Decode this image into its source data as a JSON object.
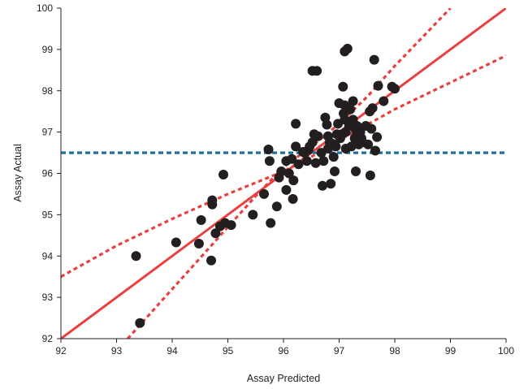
{
  "chart_data": {
    "type": "scatter",
    "title": "",
    "xlabel": "Assay Predicted",
    "ylabel": "Assay Actual",
    "xlim": [
      92,
      100
    ],
    "ylim": [
      92,
      100
    ],
    "xticks": [
      "92",
      "93",
      "94",
      "95",
      "96",
      "97",
      "98",
      "99",
      "100"
    ],
    "yticks": [
      "92",
      "93",
      "94",
      "95",
      "96",
      "97",
      "98",
      "99",
      "100"
    ],
    "grid": false,
    "colors": {
      "points": "#231f20",
      "fit_line": "#e8403f",
      "confidence_lines": "#e8403f",
      "mean_line": "#1f6f9e",
      "axes": "#231f20"
    },
    "series": [
      {
        "name": "observations",
        "kind": "scatter",
        "points": [
          [
            93.35,
            94.0
          ],
          [
            93.42,
            92.38
          ],
          [
            94.07,
            94.33
          ],
          [
            94.48,
            94.3
          ],
          [
            94.52,
            94.87
          ],
          [
            94.7,
            93.89
          ],
          [
            94.72,
            95.35
          ],
          [
            94.72,
            95.25
          ],
          [
            94.78,
            94.55
          ],
          [
            94.86,
            94.72
          ],
          [
            94.92,
            95.97
          ],
          [
            94.95,
            94.8
          ],
          [
            95.06,
            94.75
          ],
          [
            95.45,
            95.0
          ],
          [
            95.65,
            95.5
          ],
          [
            95.73,
            96.58
          ],
          [
            95.75,
            96.3
          ],
          [
            95.77,
            94.8
          ],
          [
            95.88,
            95.2
          ],
          [
            95.92,
            95.9
          ],
          [
            95.96,
            96.05
          ],
          [
            96.05,
            95.6
          ],
          [
            96.05,
            96.3
          ],
          [
            96.1,
            96.0
          ],
          [
            96.15,
            96.35
          ],
          [
            96.17,
            95.38
          ],
          [
            96.18,
            95.83
          ],
          [
            96.22,
            96.65
          ],
          [
            96.22,
            97.2
          ],
          [
            96.27,
            96.22
          ],
          [
            96.35,
            96.52
          ],
          [
            96.38,
            96.5
          ],
          [
            96.42,
            96.3
          ],
          [
            96.45,
            96.57
          ],
          [
            96.47,
            96.65
          ],
          [
            96.52,
            96.75
          ],
          [
            96.52,
            98.48
          ],
          [
            96.55,
            96.95
          ],
          [
            96.58,
            96.25
          ],
          [
            96.6,
            98.48
          ],
          [
            96.62,
            96.9
          ],
          [
            96.68,
            96.5
          ],
          [
            96.7,
            95.7
          ],
          [
            96.72,
            96.3
          ],
          [
            96.75,
            97.35
          ],
          [
            96.78,
            97.18
          ],
          [
            96.8,
            96.9
          ],
          [
            96.8,
            96.6
          ],
          [
            96.83,
            96.75
          ],
          [
            96.85,
            95.75
          ],
          [
            96.88,
            96.72
          ],
          [
            96.9,
            96.4
          ],
          [
            96.92,
            96.05
          ],
          [
            96.94,
            96.65
          ],
          [
            96.96,
            96.95
          ],
          [
            96.98,
            97.2
          ],
          [
            97.0,
            97.7
          ],
          [
            97.02,
            96.85
          ],
          [
            97.05,
            96.95
          ],
          [
            97.07,
            98.1
          ],
          [
            97.08,
            97.45
          ],
          [
            97.1,
            97.65
          ],
          [
            97.1,
            97.3
          ],
          [
            97.12,
            96.6
          ],
          [
            97.12,
            97.0
          ],
          [
            97.1,
            98.95
          ],
          [
            97.15,
            99.02
          ],
          [
            97.18,
            97.15
          ],
          [
            97.2,
            97.55
          ],
          [
            97.22,
            96.65
          ],
          [
            97.25,
            97.3
          ],
          [
            97.25,
            97.75
          ],
          [
            97.28,
            96.85
          ],
          [
            97.3,
            97.05
          ],
          [
            97.3,
            96.05
          ],
          [
            97.32,
            97.15
          ],
          [
            97.35,
            96.7
          ],
          [
            97.38,
            97.0
          ],
          [
            97.4,
            96.85
          ],
          [
            97.42,
            96.75
          ],
          [
            97.48,
            97.15
          ],
          [
            97.52,
            96.7
          ],
          [
            97.55,
            97.5
          ],
          [
            97.56,
            95.95
          ],
          [
            97.58,
            97.08
          ],
          [
            97.6,
            97.58
          ],
          [
            97.63,
            98.75
          ],
          [
            97.65,
            96.55
          ],
          [
            97.68,
            96.88
          ],
          [
            97.7,
            98.12
          ],
          [
            97.8,
            97.75
          ],
          [
            97.95,
            98.1
          ],
          [
            98.0,
            98.05
          ]
        ]
      },
      {
        "name": "fit line",
        "kind": "line",
        "style": "solid",
        "points": [
          [
            92,
            92
          ],
          [
            100,
            100
          ]
        ]
      },
      {
        "name": "upper confidence limit",
        "kind": "line",
        "style": "dotted",
        "points": [
          [
            93.2,
            92.0
          ],
          [
            93.6,
            92.6
          ],
          [
            94.0,
            93.2
          ],
          [
            94.5,
            93.95
          ],
          [
            95.0,
            94.7
          ],
          [
            95.5,
            95.45
          ],
          [
            96.0,
            96.15
          ],
          [
            96.5,
            96.65
          ],
          [
            97.0,
            97.2
          ],
          [
            97.5,
            97.85
          ],
          [
            98.0,
            98.6
          ],
          [
            98.5,
            99.3
          ],
          [
            99.0,
            100.0
          ]
        ]
      },
      {
        "name": "lower confidence limit",
        "kind": "line",
        "style": "dotted",
        "points": [
          [
            92.0,
            93.5
          ],
          [
            93.0,
            94.25
          ],
          [
            94.0,
            94.9
          ],
          [
            95.0,
            95.5
          ],
          [
            96.0,
            96.05
          ],
          [
            96.5,
            96.4
          ],
          [
            97.0,
            96.8
          ],
          [
            98.0,
            97.55
          ],
          [
            99.0,
            98.2
          ],
          [
            100.0,
            98.85
          ]
        ]
      },
      {
        "name": "mean",
        "kind": "line",
        "style": "dashed",
        "points": [
          [
            92,
            96.5
          ],
          [
            100,
            96.5
          ]
        ]
      }
    ]
  }
}
